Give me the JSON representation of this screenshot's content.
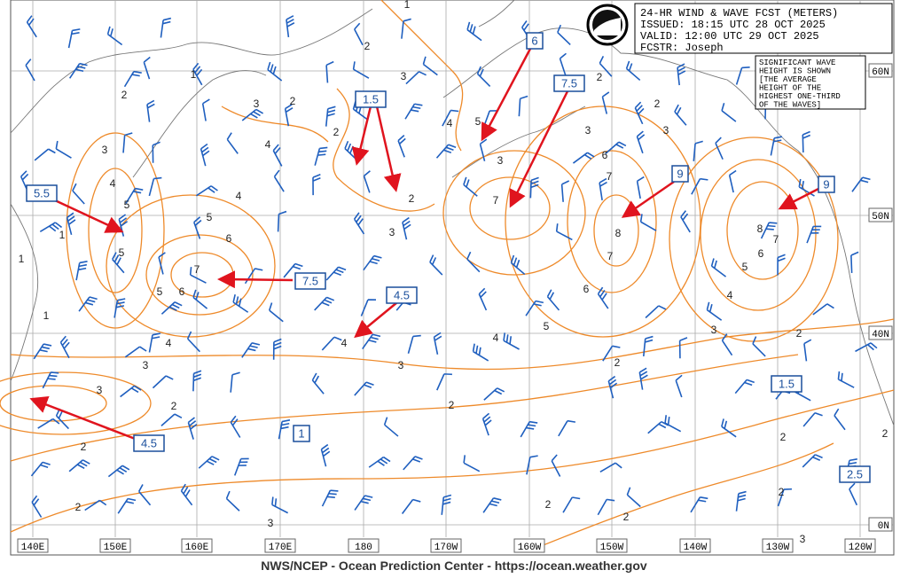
{
  "header": {
    "title": "24-HR WIND & WAVE FCST (METERS)",
    "issued": "ISSUED: 18:15 UTC 28 OCT 2025",
    "valid": "VALID:  12:00 UTC 29 OCT 2025",
    "forecaster": "FCSTR:  Joseph"
  },
  "note": [
    "SIGNIFICANT WAVE",
    "HEIGHT IS SHOWN",
    "[THE AVERAGE",
    "HEIGHT OF THE",
    "HIGHEST ONE-THIRD",
    "OF THE WAVES]"
  ],
  "longitude_labels": [
    "140E",
    "150E",
    "160E",
    "170E",
    "180",
    "170W",
    "160W",
    "150W",
    "140W",
    "130W",
    "120W"
  ],
  "latitude_labels": [
    "60N",
    "50N",
    "40N",
    "0N"
  ],
  "boxed_labels": [
    "1.5",
    "6",
    "7.5",
    "9",
    "9",
    "5.5",
    "7.5",
    "4.5",
    "4.5",
    "1",
    "1.5",
    "2.5"
  ],
  "contour_labels": [
    "1",
    "2",
    "1",
    "2",
    "3",
    "3",
    "2",
    "2",
    "4",
    "3",
    "4",
    "5",
    "4",
    "5",
    "6",
    "7",
    "6",
    "5",
    "5",
    "1",
    "1",
    "1",
    "4",
    "3",
    "3",
    "4",
    "3",
    "2",
    "3",
    "4",
    "5",
    "3",
    "7",
    "6",
    "7",
    "8",
    "7",
    "6",
    "5",
    "4",
    "3",
    "2",
    "2",
    "3",
    "8",
    "7",
    "6",
    "5",
    "4",
    "3",
    "2",
    "2",
    "2",
    "2",
    "2",
    "2",
    "3",
    "2",
    "2",
    "2",
    "2",
    "3",
    "2"
  ],
  "footer": "NWS/NCEP - Ocean Prediction Center - https://ocean.weather.gov"
}
